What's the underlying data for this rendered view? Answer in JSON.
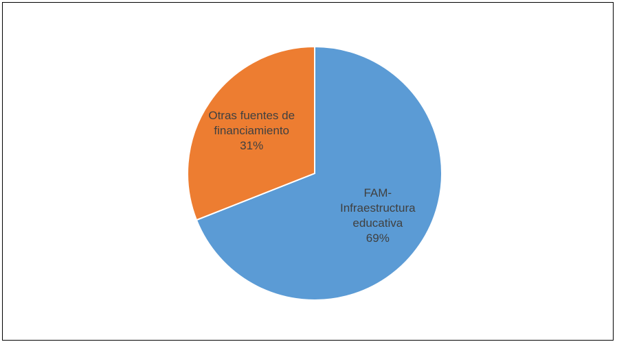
{
  "chart_data": {
    "type": "pie",
    "categories": [
      "FAM-Infraestructura educativa",
      "Otras fuentes de financiamiento"
    ],
    "values": [
      69,
      31
    ],
    "value_labels": [
      "69%",
      "31%"
    ],
    "colors": [
      "#5b9bd5",
      "#ed7d31"
    ]
  }
}
